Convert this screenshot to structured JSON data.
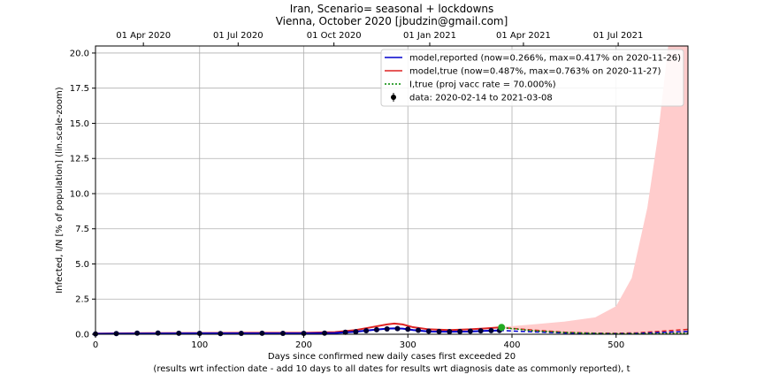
{
  "chart_data": {
    "type": "line",
    "title": "Iran, Scenario= seasonal + lockdowns",
    "subtitle": "Vienna, October 2020 [jbudzin@gmail.com]",
    "xlabel": "Days since confirmed new daily cases first exceeded 20",
    "xlabel_note": "(results wrt infection date - add 10 days to all dates for results wrt diagnosis date as commonly reported), t",
    "ylabel": "Infected, I/N [% of population] (lin.scale-zoom)",
    "xlim": [
      0,
      569
    ],
    "ylim": [
      0,
      20.5
    ],
    "x_ticks": [
      0,
      100,
      200,
      300,
      400,
      500
    ],
    "x_tick_labels": [
      "0",
      "100",
      "200",
      "300",
      "400",
      "500"
    ],
    "y_ticks": [
      0,
      2.5,
      5,
      7.5,
      10,
      12.5,
      15,
      17.5,
      20
    ],
    "y_tick_labels": [
      "0.0",
      "2.5",
      "5.0",
      "7.5",
      "10.0",
      "12.5",
      "15.0",
      "17.5",
      "20.0"
    ],
    "top_axis": {
      "ticks": [
        46,
        137,
        229,
        321,
        411,
        502
      ],
      "labels": [
        "01 Apr 2020",
        "01 Jul 2020",
        "01 Oct 2020",
        "01 Jan 2021",
        "01 Apr 2021",
        "01 Jul 2021"
      ]
    },
    "grid": true,
    "legend_position": "top-right",
    "legend": [
      {
        "label": "model,reported (now=0.266%, max=0.417% on 2020-11-26)",
        "color": "#0000cc",
        "style": "solid"
      },
      {
        "label": "model,true (now=0.487%, max=0.763% on 2020-11-27)",
        "color": "#dd2222",
        "style": "solid"
      },
      {
        "label": "I,true (proj vacc rate = 70.000%)",
        "color": "#008800",
        "style": "dotted"
      },
      {
        "label": "data: 2020-02-14 to 2021-03-08",
        "color": "#000000",
        "style": "marker"
      }
    ],
    "series": [
      {
        "name": "model,true",
        "color": "#dd2222",
        "x": [
          0,
          50,
          100,
          150,
          200,
          230,
          250,
          265,
          280,
          287,
          295,
          305,
          320,
          340,
          360,
          375,
          388
        ],
        "y": [
          0.05,
          0.08,
          0.09,
          0.1,
          0.1,
          0.15,
          0.3,
          0.5,
          0.7,
          0.76,
          0.7,
          0.5,
          0.35,
          0.3,
          0.35,
          0.42,
          0.49
        ]
      },
      {
        "name": "model,reported",
        "color": "#0000cc",
        "x": [
          0,
          50,
          100,
          150,
          200,
          230,
          250,
          265,
          280,
          287,
          295,
          305,
          320,
          340,
          360,
          375,
          388
        ],
        "y": [
          0.03,
          0.05,
          0.06,
          0.06,
          0.06,
          0.09,
          0.18,
          0.3,
          0.4,
          0.42,
          0.4,
          0.3,
          0.2,
          0.18,
          0.2,
          0.24,
          0.27
        ]
      },
      {
        "name": "model,true projection",
        "color": "#dd2222",
        "dashed": true,
        "x": [
          388,
          420,
          450,
          480,
          500,
          520,
          540,
          569
        ],
        "y": [
          0.49,
          0.3,
          0.15,
          0.08,
          0.07,
          0.1,
          0.2,
          0.35
        ]
      },
      {
        "name": "model,reported projection",
        "color": "#0000cc",
        "dashed": true,
        "x": [
          388,
          420,
          450,
          480,
          500,
          520,
          540,
          569
        ],
        "y": [
          0.27,
          0.17,
          0.09,
          0.05,
          0.04,
          0.06,
          0.12,
          0.2
        ]
      },
      {
        "name": "I,true",
        "color": "#008800",
        "dotted": true,
        "x": [
          388,
          420,
          450,
          480,
          500,
          520,
          540,
          569
        ],
        "y": [
          0.49,
          0.25,
          0.12,
          0.06,
          0.04,
          0.04,
          0.05,
          0.07
        ]
      }
    ],
    "uncertainty_band": {
      "color": "#ffcccc",
      "x": [
        388,
        420,
        450,
        480,
        500,
        515,
        530,
        540,
        550,
        560,
        569
      ],
      "y_upper": [
        0.5,
        0.7,
        0.9,
        1.2,
        2.0,
        4.0,
        9.0,
        14.0,
        20.5,
        20.5,
        20.5
      ],
      "y_lower": [
        0.45,
        0.2,
        0.05,
        0.01,
        0.0,
        0.0,
        0.0,
        0.0,
        0.0,
        0.0,
        0.0
      ]
    },
    "data_points": {
      "color": "#000033",
      "x": [
        0,
        20,
        40,
        60,
        80,
        100,
        120,
        140,
        160,
        180,
        200,
        220,
        240,
        250,
        260,
        270,
        280,
        290,
        300,
        310,
        320,
        330,
        340,
        350,
        360,
        370,
        380,
        388
      ],
      "y": [
        0.02,
        0.05,
        0.08,
        0.09,
        0.07,
        0.06,
        0.05,
        0.06,
        0.07,
        0.06,
        0.06,
        0.08,
        0.14,
        0.18,
        0.25,
        0.32,
        0.38,
        0.4,
        0.36,
        0.28,
        0.22,
        0.2,
        0.19,
        0.2,
        0.22,
        0.24,
        0.26,
        0.27
      ]
    },
    "current_marker": {
      "x": 390,
      "y": 0.49,
      "color": "#22aa22"
    }
  }
}
